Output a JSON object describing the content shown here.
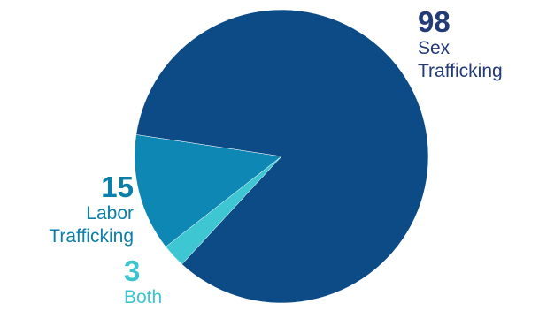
{
  "chart_data": {
    "type": "pie",
    "slices": [
      {
        "label": "Sex Trafficking",
        "label_lines": [
          "Sex",
          "Trafficking"
        ],
        "value": 98,
        "color": "#0d4b86"
      },
      {
        "label": "Labor Trafficking",
        "label_lines": [
          "Labor",
          "Trafficking"
        ],
        "value": 15,
        "color": "#0e87b5"
      },
      {
        "label": "Both",
        "label_lines": [
          "Both"
        ],
        "value": 3,
        "color": "#3ec7d2"
      }
    ]
  }
}
